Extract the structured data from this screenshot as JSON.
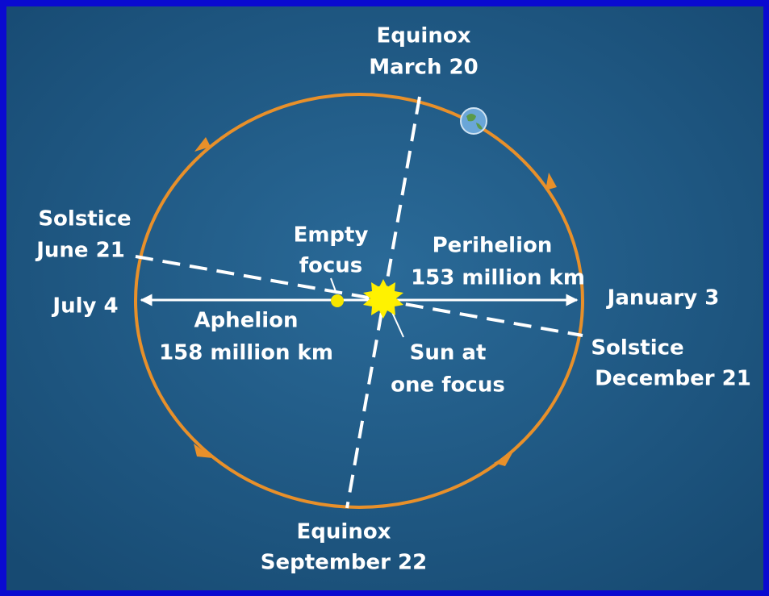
{
  "labels": [
    {
      "lines": [
        "Equinox",
        "March 20"
      ]
    },
    {
      "lines": [
        "Solstice",
        "June 21"
      ]
    },
    {
      "lines": [
        "Empty",
        "focus"
      ]
    },
    {
      "lines": [
        "Perihelion",
        "153 million km"
      ]
    },
    {
      "lines": [
        "July 4"
      ]
    },
    {
      "lines": [
        "January 3"
      ]
    },
    {
      "lines": [
        "Aphelion",
        "158 million km"
      ]
    },
    {
      "lines": [
        "Sun at",
        "one focus"
      ]
    },
    {
      "lines": [
        "Solstice",
        "December 21"
      ]
    },
    {
      "lines": [
        "Equinox",
        "September 22"
      ]
    }
  ]
}
